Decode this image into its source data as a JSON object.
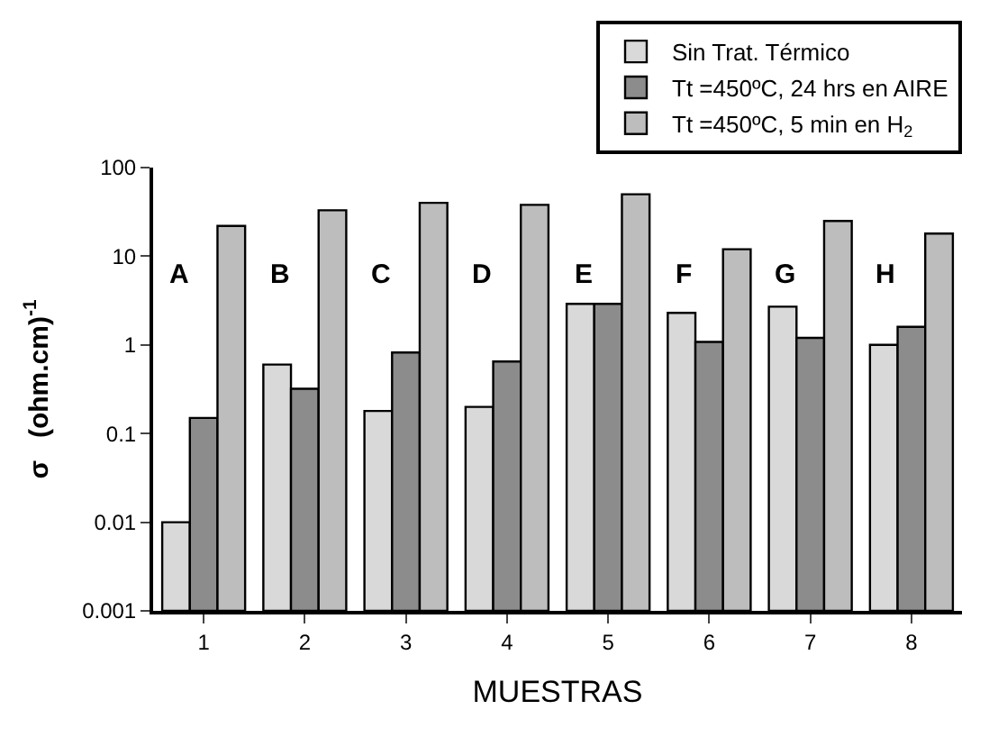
{
  "chart_data": {
    "type": "bar",
    "xlabel": "MUESTRAS",
    "ylabel": "σ   (ohm.cm)$^{-1}$",
    "categories": [
      "1",
      "2",
      "3",
      "4",
      "5",
      "6",
      "7",
      "8"
    ],
    "series": [
      {
        "name": "Sin Trat. Térmico",
        "color": "#d9d9d9",
        "values": [
          0.01,
          0.6,
          0.18,
          0.2,
          2.9,
          2.3,
          2.7,
          1.0
        ]
      },
      {
        "name": "Tt =450ºC, 24 hrs en AIRE",
        "color": "#8c8c8c",
        "values": [
          0.15,
          0.32,
          0.82,
          0.65,
          2.9,
          1.08,
          1.2,
          1.6
        ]
      },
      {
        "name": "Tt =450ºC, 5 min en H$_{2}$",
        "color": "#bdbdbd",
        "values": [
          22,
          33,
          40,
          38,
          50,
          12,
          25,
          18
        ]
      }
    ],
    "log": "y",
    "ylim": [
      0.001,
      100
    ],
    "yticks": [
      0.001,
      0.01,
      0.1,
      1,
      10,
      100
    ],
    "legend": "top right",
    "annotations": [
      "A",
      "B",
      "C",
      "D",
      "E",
      "F",
      "G",
      "H"
    ]
  }
}
